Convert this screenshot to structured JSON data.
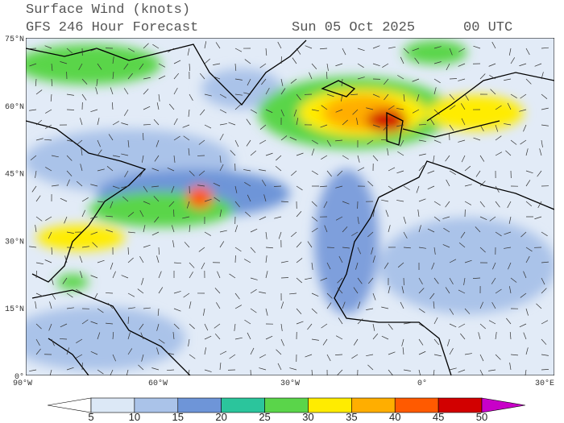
{
  "header": {
    "title": "Surface Wind (knots)",
    "subtitle": "GFS 246 Hour Forecast",
    "date": "Sun 05 Oct 2025",
    "time": "00 UTC"
  },
  "map": {
    "lat_labels": [
      "75°N",
      "60°N",
      "45°N",
      "30°N",
      "15°N",
      "0°"
    ],
    "lon_labels": [
      "90°W",
      "60°W",
      "30°W",
      "0°",
      "30°E"
    ]
  },
  "colorbar": {
    "ticks": [
      5,
      10,
      15,
      20,
      25,
      30,
      35,
      40,
      45,
      50
    ],
    "colors": [
      "#ffffff",
      "#dce8f6",
      "#aac3e9",
      "#6e95d8",
      "#2bc59c",
      "#5ad54a",
      "#ffec00",
      "#ffae00",
      "#ff5a00",
      "#d20000",
      "#c800c8"
    ]
  }
}
